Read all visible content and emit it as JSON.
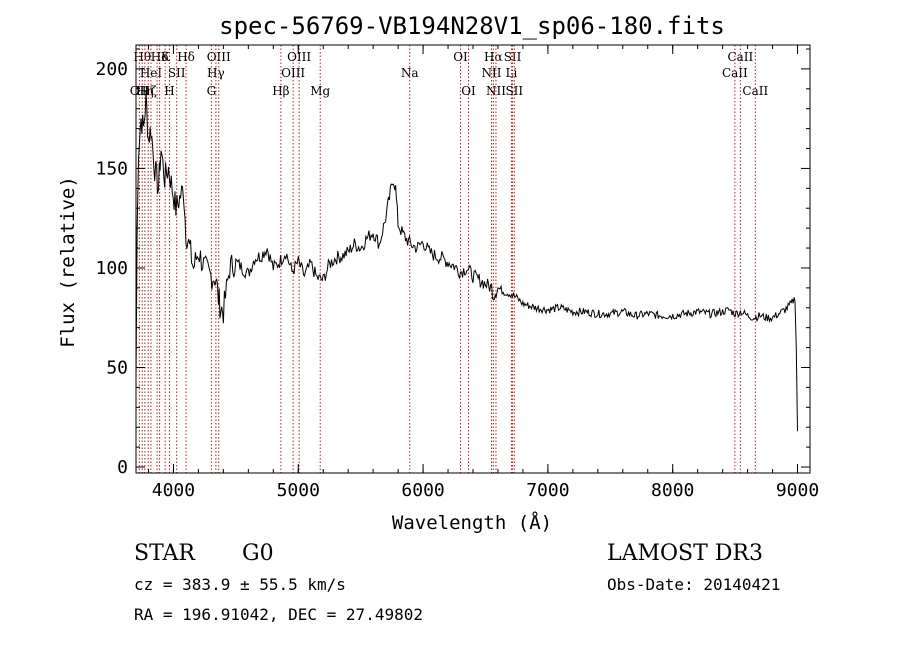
{
  "chart_data": {
    "type": "line",
    "title": "spec-56769-VB194N28V1_sp06-180.fits",
    "xlabel": "Wavelength (Å)",
    "ylabel": "Flux (relative)",
    "xlim": [
      3700,
      9100
    ],
    "ylim": [
      -3,
      212
    ],
    "xticks": [
      4000,
      5000,
      6000,
      7000,
      8000,
      9000
    ],
    "yticks": [
      0,
      50,
      100,
      150,
      200
    ],
    "grid": false,
    "line_color": "#000000",
    "marker_color": "#b22222",
    "series": [
      {
        "x": [
          3700,
          3710,
          3720,
          3740,
          3760,
          3780,
          3800,
          3820,
          3850,
          3880,
          3900,
          3930,
          3960,
          3990,
          4020,
          4050,
          4080,
          4100,
          4130,
          4160,
          4200,
          4250,
          4300,
          4340,
          4360,
          4380,
          4400,
          4450,
          4500,
          4550,
          4600,
          4650,
          4700,
          4750,
          4800,
          4850,
          4900,
          4950,
          5000,
          5050,
          5100,
          5150,
          5200,
          5250,
          5300,
          5350,
          5400,
          5450,
          5500,
          5550,
          5600,
          5650,
          5700,
          5730,
          5760,
          5780,
          5800,
          5830,
          5860,
          5900,
          5950,
          6000,
          6050,
          6100,
          6150,
          6200,
          6250,
          6300,
          6350,
          6400,
          6450,
          6500,
          6550,
          6563,
          6600,
          6650,
          6700,
          6750,
          6800,
          6900,
          7000,
          7100,
          7200,
          7300,
          7400,
          7500,
          7600,
          7700,
          7800,
          7900,
          8000,
          8100,
          8200,
          8300,
          8400,
          8450,
          8500,
          8550,
          8600,
          8650,
          8700,
          8750,
          8800,
          8850,
          8900,
          8950,
          8980,
          8990,
          9000
        ],
        "y": [
          45,
          120,
          160,
          175,
          170,
          185,
          165,
          170,
          150,
          140,
          160,
          145,
          150,
          140,
          130,
          135,
          140,
          118,
          110,
          100,
          108,
          100,
          96,
          95,
          85,
          80,
          78,
          100,
          103,
          100,
          97,
          105,
          106,
          110,
          100,
          103,
          108,
          98,
          103,
          96,
          102,
          95,
          94,
          102,
          105,
          106,
          108,
          112,
          110,
          115,
          118,
          112,
          125,
          135,
          145,
          140,
          122,
          118,
          115,
          112,
          110,
          113,
          108,
          106,
          105,
          103,
          101,
          98,
          100,
          96,
          94,
          92,
          90,
          86,
          90,
          88,
          87,
          85,
          82,
          80,
          79,
          80,
          78,
          78,
          77,
          77,
          78,
          76,
          77,
          76,
          76,
          77,
          78,
          77,
          78,
          79,
          77,
          78,
          76,
          75,
          76,
          75,
          75,
          77,
          79,
          82,
          85,
          60,
          18
        ]
      }
    ],
    "line_markers": [
      {
        "wavelength": 3727,
        "label": "OII",
        "row": 3
      },
      {
        "wavelength": 3750,
        "label": "Hθ",
        "row": 1
      },
      {
        "wavelength": 3771,
        "label": "Hη",
        "row": 3
      },
      {
        "wavelength": 3798,
        "label": "Hζ",
        "row": 3
      },
      {
        "wavelength": 3820,
        "label": "HeI",
        "row": 2
      },
      {
        "wavelength": 3869,
        "label": "",
        "row": 0
      },
      {
        "wavelength": 3889,
        "label": "Hδ",
        "row": 1
      },
      {
        "wavelength": 3934,
        "label": "K",
        "row": 1
      },
      {
        "wavelength": 3968,
        "label": "H",
        "row": 3
      },
      {
        "wavelength": 4026,
        "label": "SII",
        "row": 2
      },
      {
        "wavelength": 4101,
        "label": "Hδ",
        "row": 1
      },
      {
        "wavelength": 4304,
        "label": "G",
        "row": 3
      },
      {
        "wavelength": 4340,
        "label": "Hγ",
        "row": 2
      },
      {
        "wavelength": 4363,
        "label": "OIII",
        "row": 1
      },
      {
        "wavelength": 4861,
        "label": "Hβ",
        "row": 3
      },
      {
        "wavelength": 4959,
        "label": "OIII",
        "row": 2
      },
      {
        "wavelength": 5007,
        "label": "OIII",
        "row": 1
      },
      {
        "wavelength": 5176,
        "label": "Mg",
        "row": 3
      },
      {
        "wavelength": 5893,
        "label": "Na",
        "row": 2
      },
      {
        "wavelength": 6300,
        "label": "OI",
        "row": 1
      },
      {
        "wavelength": 6364,
        "label": "OI",
        "row": 3
      },
      {
        "wavelength": 6548,
        "label": "NII",
        "row": 2
      },
      {
        "wavelength": 6563,
        "label": "Hα",
        "row": 1
      },
      {
        "wavelength": 6584,
        "label": "NII",
        "row": 3
      },
      {
        "wavelength": 6708,
        "label": "Li",
        "row": 2
      },
      {
        "wavelength": 6717,
        "label": "SII",
        "row": 1
      },
      {
        "wavelength": 6731,
        "label": "SII",
        "row": 3
      },
      {
        "wavelength": 8498,
        "label": "CaII",
        "row": 2
      },
      {
        "wavelength": 8542,
        "label": "CaII",
        "row": 1
      },
      {
        "wavelength": 8662,
        "label": "CaII",
        "row": 3
      }
    ]
  },
  "info": {
    "class_label": "STAR",
    "subclass_label": "G0",
    "survey_label": "LAMOST DR3",
    "redshift_text": "cz = 383.9 ± 55.5 km/s",
    "obs_date_text": "Obs-Date: 20140421",
    "coords_text": "RA = 196.91042, DEC =  27.49802"
  }
}
